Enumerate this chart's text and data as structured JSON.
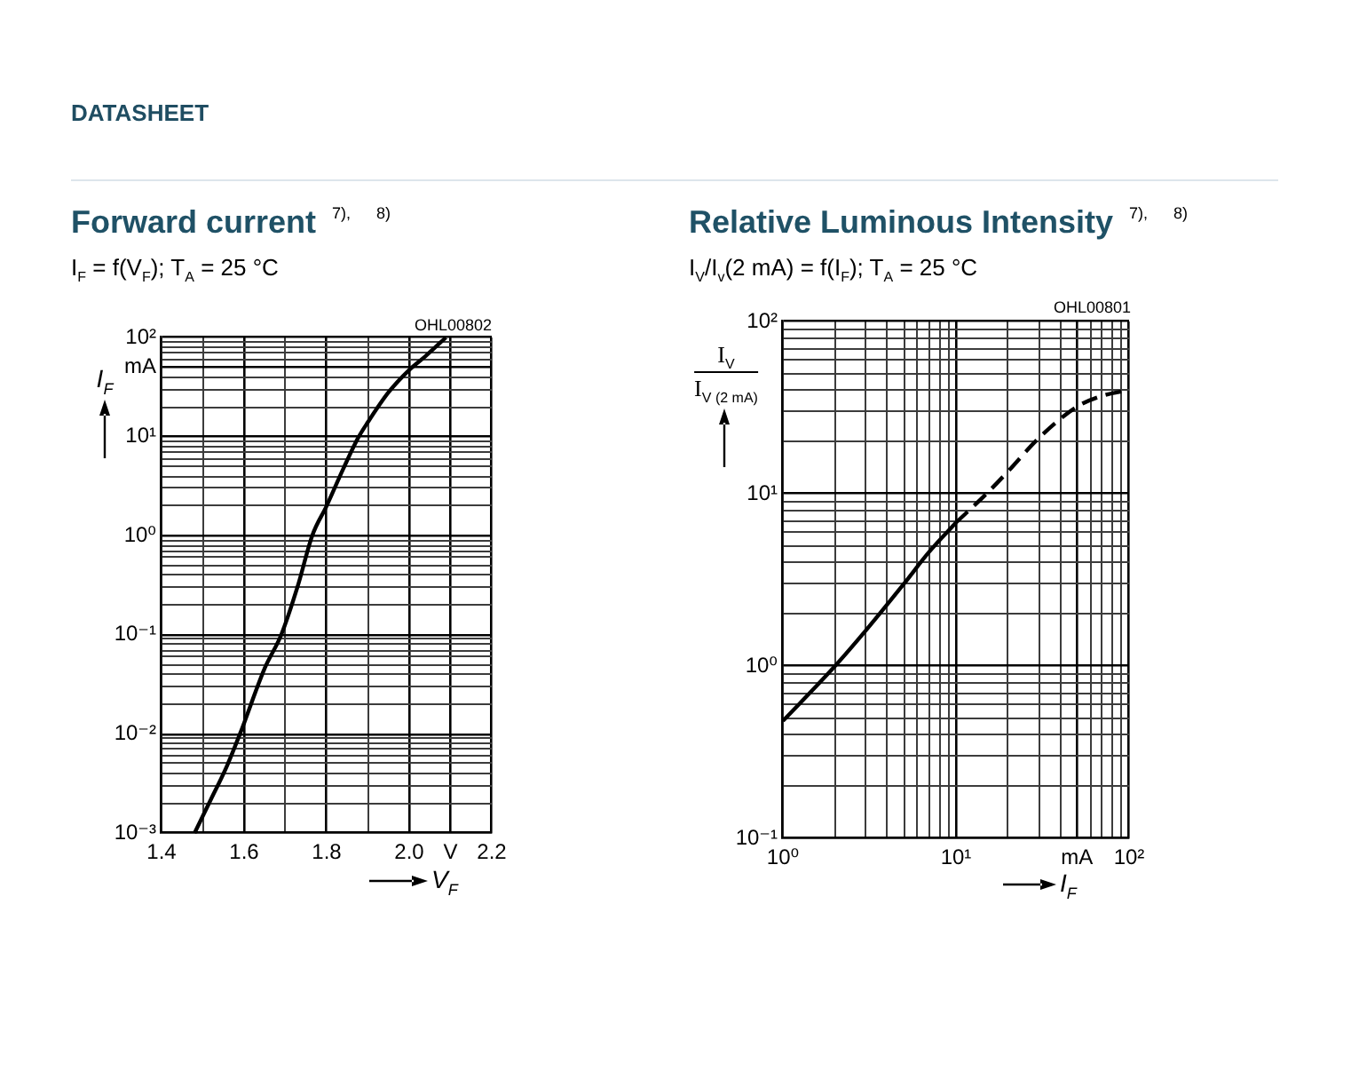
{
  "chart_data": [
    {
      "type": "other",
      "title": "DATASHEET"
    },
    {
      "type": "line",
      "title": "Forward current $^{7), 8)}$",
      "subtitle": "I$_{F}$ = f(V$_{F}$); T$_{A}$ = 25 °C",
      "xlabel": "V$_{F}$",
      "ylabel": "I$_{F}$",
      "annotations": [
        "OHL00802"
      ],
      "x": [
        1.48,
        1.52,
        1.555,
        1.59,
        1.65,
        1.69,
        1.73,
        1.765,
        1.8,
        1.84,
        1.875,
        1.9,
        1.95,
        2.0,
        2.04,
        2.089
      ],
      "values": [
        0.001,
        0.0022,
        0.0044,
        0.01,
        0.046,
        0.1,
        0.31,
        1.0,
        2.0,
        4.7,
        9.5,
        14,
        28,
        47,
        65,
        100
      ],
      "color": "#000000",
      "xlim": [
        1.4,
        2.2
      ],
      "xticks": [
        1.4,
        {
          "value": 1.5,
          "label": null
        },
        1.6,
        {
          "value": 1.7,
          "label": null
        },
        1.8,
        {
          "value": 1.9,
          "label": null
        },
        {
          "value": 2.0,
          "label": "2.0"
        },
        {
          "value": 2.1,
          "label": "V"
        },
        2.2
      ],
      "ylim": [
        0.001,
        100
      ],
      "yticks": [
        {
          "value": 0.001,
          "label": "10⁻³"
        },
        {
          "value": 0.002,
          "label": null
        },
        {
          "value": 0.003,
          "label": null
        },
        {
          "value": 0.004,
          "label": null
        },
        {
          "value": 0.005,
          "label": null
        },
        {
          "value": 0.006,
          "label": null
        },
        {
          "value": 0.007,
          "label": null
        },
        {
          "value": 0.008,
          "label": null
        },
        {
          "value": 0.009,
          "label": null
        },
        {
          "value": 0.01,
          "label": "10⁻²"
        },
        {
          "value": 0.02,
          "label": null
        },
        {
          "value": 0.03,
          "label": null
        },
        {
          "value": 0.04,
          "label": null
        },
        {
          "value": 0.05,
          "label": null
        },
        {
          "value": 0.06,
          "label": null
        },
        {
          "value": 0.07,
          "label": null
        },
        {
          "value": 0.08,
          "label": null
        },
        {
          "value": 0.09,
          "label": null
        },
        {
          "value": 0.1,
          "label": "10⁻¹"
        },
        {
          "value": 0.2,
          "label": null
        },
        {
          "value": 0.3,
          "label": null
        },
        {
          "value": 0.4,
          "label": null
        },
        {
          "value": 0.5,
          "label": null
        },
        {
          "value": 0.6,
          "label": null
        },
        {
          "value": 0.7,
          "label": null
        },
        {
          "value": 0.8,
          "label": null
        },
        {
          "value": 0.9,
          "label": null
        },
        {
          "value": 1,
          "label": "10⁰"
        },
        {
          "value": 2,
          "label": null
        },
        {
          "value": 3,
          "label": null
        },
        {
          "value": 4,
          "label": null
        },
        {
          "value": 5,
          "label": null
        },
        {
          "value": 6,
          "label": null
        },
        {
          "value": 7,
          "label": null
        },
        {
          "value": 8,
          "label": null
        },
        {
          "value": 9,
          "label": null
        },
        {
          "value": 10,
          "label": "10¹"
        },
        {
          "value": 20,
          "label": null
        },
        {
          "value": 30,
          "label": null
        },
        {
          "value": 40,
          "label": null
        },
        {
          "value": 50,
          "label": "mA"
        },
        {
          "value": 60,
          "label": null
        },
        {
          "value": 70,
          "label": null
        },
        {
          "value": 80,
          "label": null
        },
        {
          "value": 90,
          "label": null
        },
        {
          "value": 100,
          "label": "10²"
        }
      ],
      "log": "y",
      "grid": true,
      "marker": "none"
    },
    {
      "type": "line",
      "title": "Relative Luminous Intensity $^{7), 8)}$",
      "subtitle": "I$_{V}$/I$_{v}$(2 mA) = f(I$_{F}$); T$_{A}$ = 25 °C",
      "xlabel": "I$_{F}$",
      "ylabel": "I$_{V}$\nI$_{V (2 mA)}$",
      "annotations": [
        "OHL00801"
      ],
      "series": [
        {
          "color": "#000000",
          "line_style": "solid",
          "x": [
            1,
            2,
            3,
            5,
            7,
            10
          ],
          "values": [
            0.48,
            1.0,
            1.6,
            3.0,
            4.6,
            6.8
          ]
        },
        {
          "color": "#000000",
          "line_style": "dashed",
          "x": [
            10,
            15,
            20,
            30,
            50,
            70,
            100
          ],
          "values": [
            6.8,
            10,
            13.5,
            21,
            32,
            37,
            40
          ]
        }
      ],
      "xlim": [
        1,
        100
      ],
      "xticks": [
        {
          "value": 1,
          "label": "10⁰"
        },
        {
          "value": 2,
          "label": null
        },
        {
          "value": 3,
          "label": null
        },
        {
          "value": 4,
          "label": null
        },
        {
          "value": 5,
          "label": null
        },
        {
          "value": 6,
          "label": null
        },
        {
          "value": 7,
          "label": null
        },
        {
          "value": 8,
          "label": null
        },
        {
          "value": 9,
          "label": null
        },
        {
          "value": 10,
          "label": "10¹"
        },
        {
          "value": 20,
          "label": null
        },
        {
          "value": 30,
          "label": null
        },
        {
          "value": 40,
          "label": null
        },
        {
          "value": 50,
          "label": "mA"
        },
        {
          "value": 60,
          "label": null
        },
        {
          "value": 70,
          "label": null
        },
        {
          "value": 80,
          "label": null
        },
        {
          "value": 90,
          "label": null
        },
        {
          "value": 100,
          "label": "10²"
        }
      ],
      "ylim": [
        0.1,
        100
      ],
      "yticks": [
        {
          "value": 0.1,
          "label": "10⁻¹"
        },
        {
          "value": 0.2,
          "label": null
        },
        {
          "value": 0.3,
          "label": null
        },
        {
          "value": 0.4,
          "label": null
        },
        {
          "value": 0.5,
          "label": null
        },
        {
          "value": 0.6,
          "label": null
        },
        {
          "value": 0.7,
          "label": null
        },
        {
          "value": 0.8,
          "label": null
        },
        {
          "value": 0.9,
          "label": null
        },
        {
          "value": 1,
          "label": "10⁰"
        },
        {
          "value": 2,
          "label": null
        },
        {
          "value": 3,
          "label": null
        },
        {
          "value": 4,
          "label": null
        },
        {
          "value": 5,
          "label": null
        },
        {
          "value": 6,
          "label": null
        },
        {
          "value": 7,
          "label": null
        },
        {
          "value": 8,
          "label": null
        },
        {
          "value": 9,
          "label": null
        },
        {
          "value": 10,
          "label": "10¹"
        },
        {
          "value": 20,
          "label": null
        },
        {
          "value": 30,
          "label": null
        },
        {
          "value": 40,
          "label": null
        },
        {
          "value": 50,
          "label": null
        },
        {
          "value": 60,
          "label": null
        },
        {
          "value": 70,
          "label": null
        },
        {
          "value": 80,
          "label": null
        },
        {
          "value": 90,
          "label": null
        },
        {
          "value": 100,
          "label": "10²"
        }
      ],
      "log": "xy",
      "grid": true,
      "marker": "none"
    }
  ]
}
